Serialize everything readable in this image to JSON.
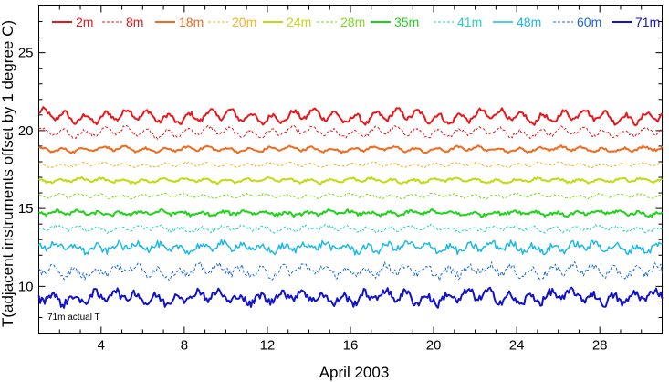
{
  "chart_data": {
    "type": "line",
    "title": "",
    "xlabel": "April 2003",
    "ylabel": "T(adjacent instruments offset by 1 degree C)",
    "xlim": [
      1,
      31
    ],
    "ylim": [
      7,
      28
    ],
    "xticks": [
      4,
      8,
      12,
      16,
      20,
      24,
      28
    ],
    "yticks": [
      10,
      15,
      20,
      25
    ],
    "annotation": "71m actual T",
    "series": [
      {
        "name": "2m",
        "color": "#e8171c",
        "dash": "solid",
        "width": 2,
        "base": 20.9,
        "wiggle": 0.3,
        "noise": 0.14
      },
      {
        "name": "8m",
        "color": "#e8171c",
        "dash": "dashed",
        "width": 1,
        "base": 19.9,
        "wiggle": 0.22,
        "noise": 0.12
      },
      {
        "name": "18m",
        "color": "#f26b1d",
        "dash": "solid",
        "width": 2,
        "base": 18.8,
        "wiggle": 0.12,
        "noise": 0.07
      },
      {
        "name": "20m",
        "color": "#f7b21e",
        "dash": "dashed",
        "width": 1,
        "base": 17.8,
        "wiggle": 0.1,
        "noise": 0.06
      },
      {
        "name": "24m",
        "color": "#c4d90e",
        "dash": "solid",
        "width": 2,
        "base": 16.8,
        "wiggle": 0.1,
        "noise": 0.07
      },
      {
        "name": "28m",
        "color": "#7ddc1f",
        "dash": "dashed",
        "width": 1,
        "base": 15.8,
        "wiggle": 0.1,
        "noise": 0.07
      },
      {
        "name": "35m",
        "color": "#1fd21a",
        "dash": "solid",
        "width": 2,
        "base": 14.7,
        "wiggle": 0.1,
        "noise": 0.1
      },
      {
        "name": "41m",
        "color": "#22d6c0",
        "dash": "dashed",
        "width": 1,
        "base": 13.7,
        "wiggle": 0.13,
        "noise": 0.12
      },
      {
        "name": "48m",
        "color": "#1bb8e8",
        "dash": "solid",
        "width": 1.5,
        "base": 12.5,
        "wiggle": 0.2,
        "noise": 0.22
      },
      {
        "name": "60m",
        "color": "#1a68d6",
        "dash": "dashed",
        "width": 1,
        "base": 11.0,
        "wiggle": 0.25,
        "noise": 0.25
      },
      {
        "name": "71m",
        "color": "#1212c8",
        "dash": "solid",
        "width": 2,
        "base": 9.3,
        "wiggle": 0.3,
        "noise": 0.25
      }
    ]
  }
}
